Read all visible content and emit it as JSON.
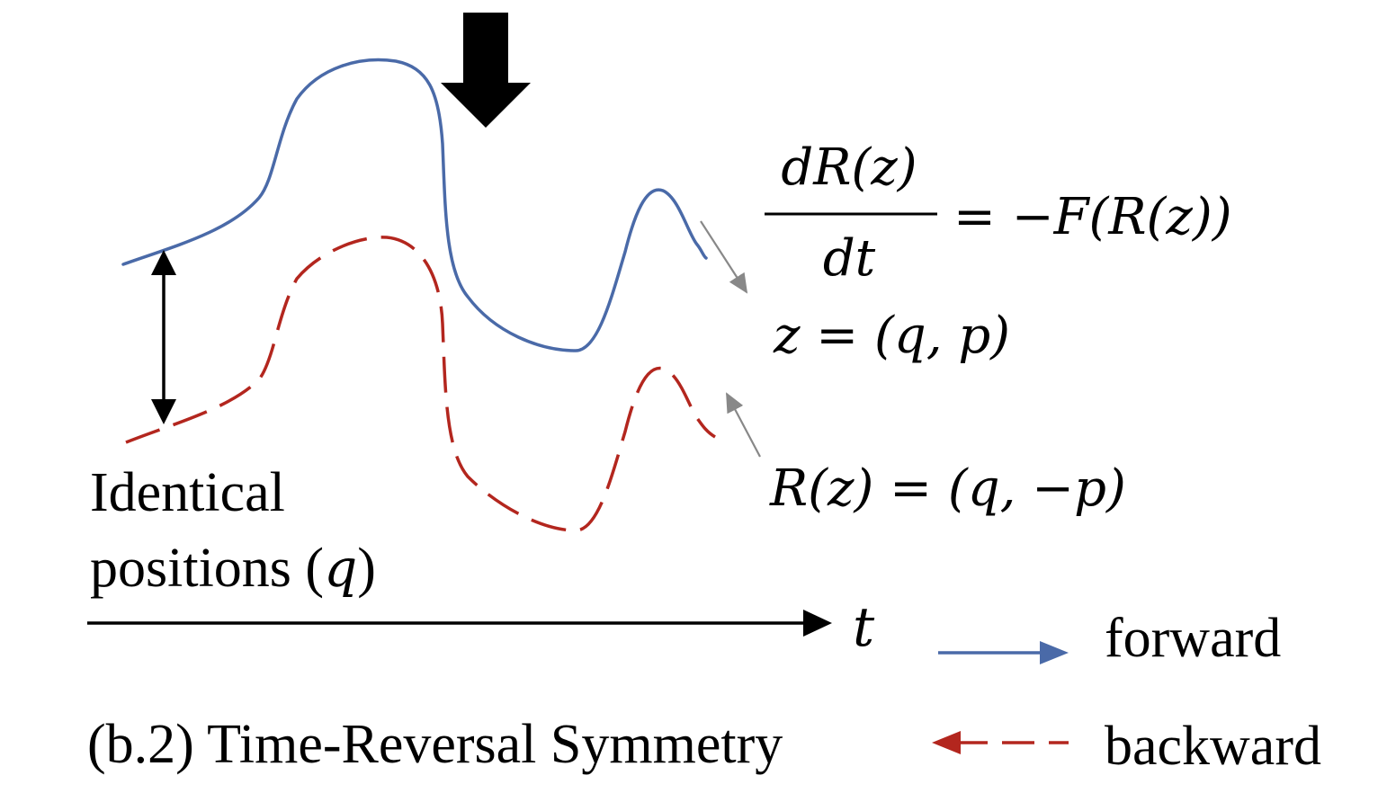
{
  "colors": {
    "forward": "#4a6aa8",
    "backward": "#b3261e",
    "pointer": "#888888",
    "axis": "#000000"
  },
  "equations": {
    "fraction_num": "dR(z)",
    "fraction_den": "dt",
    "fraction_rhs": "= −F(R(z))",
    "z_def": "z = (q, p)",
    "r_def": "R(z) = (q, −p)"
  },
  "labels": {
    "identical_line1": "Identical",
    "identical_line2": "positions (",
    "identical_q": "q",
    "identical_close": ")",
    "axis_t": "t",
    "caption": "(b.2) Time-Reversal Symmetry"
  },
  "legend": {
    "forward_label": "forward",
    "backward_label": "backward"
  }
}
